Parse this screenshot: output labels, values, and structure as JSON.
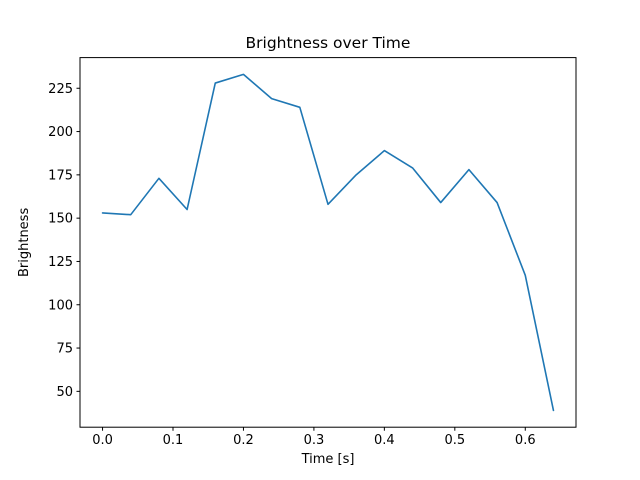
{
  "chart_data": {
    "type": "line",
    "title": "Brightness over Time",
    "xlabel": "Time [s]",
    "ylabel": "Brightness",
    "x": [
      0.0,
      0.04,
      0.08,
      0.12,
      0.16,
      0.2,
      0.24,
      0.28,
      0.32,
      0.36,
      0.4,
      0.44,
      0.48,
      0.52,
      0.56,
      0.6,
      0.64
    ],
    "y": [
      153,
      152,
      173,
      155,
      228,
      233,
      219,
      214,
      158,
      175,
      189,
      179,
      159,
      178,
      159,
      117,
      39
    ],
    "xlim": [
      -0.032,
      0.672
    ],
    "ylim": [
      29.3,
      242.7
    ],
    "xtick_values": [
      0.0,
      0.1,
      0.2,
      0.3,
      0.4,
      0.5,
      0.6
    ],
    "xtick_labels": [
      "0.0",
      "0.1",
      "0.2",
      "0.3",
      "0.4",
      "0.5",
      "0.6"
    ],
    "ytick_values": [
      50,
      75,
      100,
      125,
      150,
      175,
      200,
      225
    ],
    "ytick_labels": [
      "50",
      "75",
      "100",
      "125",
      "150",
      "175",
      "200",
      "225"
    ],
    "line_color": "#1f77b4",
    "frame_color": "#000000",
    "background_color": "#ffffff",
    "grid": false,
    "legend_position": "none"
  }
}
